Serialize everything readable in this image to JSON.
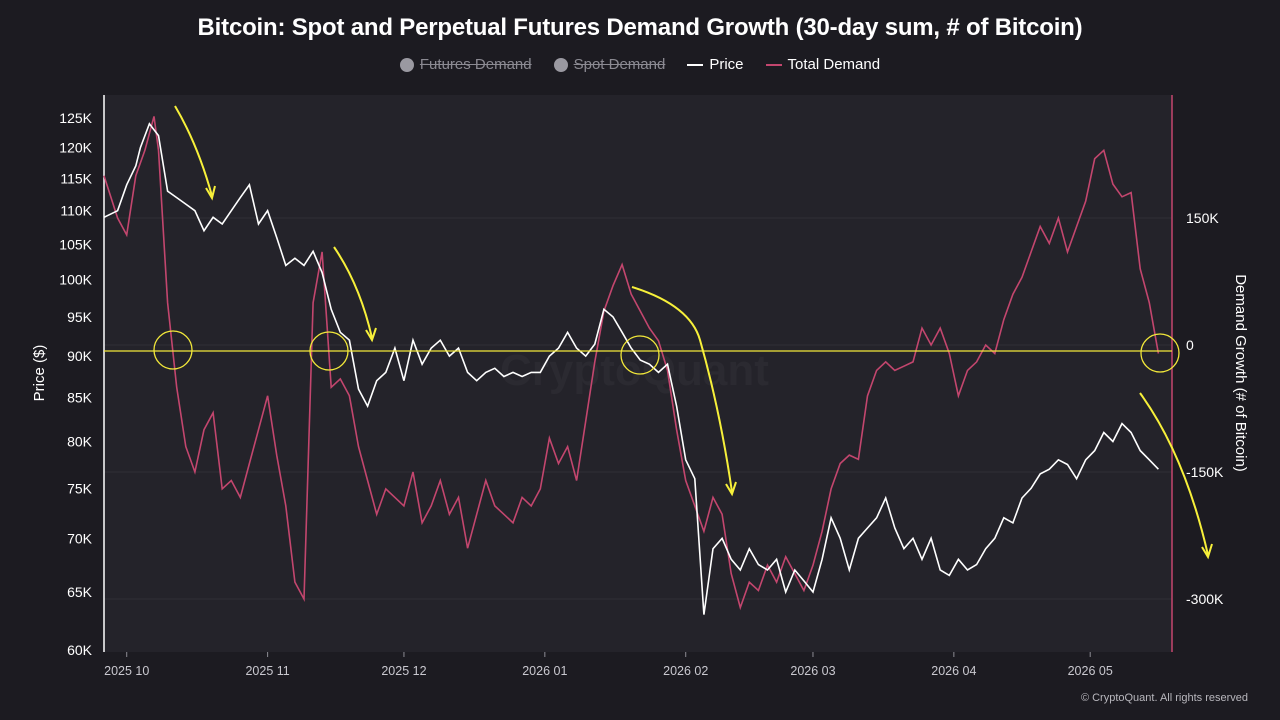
{
  "chart_data": {
    "type": "line",
    "title": "Bitcoin: Spot and Perpetual Futures Demand Growth (30-day sum, # of Bitcoin)",
    "legend": [
      {
        "name": "Futures Demand",
        "hidden": true,
        "color": "#9a99a1",
        "marker": "dot"
      },
      {
        "name": "Spot Demand",
        "hidden": true,
        "color": "#9a99a1",
        "marker": "dot"
      },
      {
        "name": "Price",
        "hidden": false,
        "color": "#ffffff",
        "marker": "line"
      },
      {
        "name": "Total Demand",
        "hidden": false,
        "color": "#c3466e",
        "marker": "line"
      }
    ],
    "legend_position": "top-center",
    "ylabel_left": "Price ($)",
    "ylabel_right": "Demand Growth (# of Bitcoin)",
    "y_left_scale": "log",
    "y_left_range": [
      60000,
      128000
    ],
    "y_left_ticks": [
      {
        "value": 125000,
        "label": "125K"
      },
      {
        "value": 120000,
        "label": "120K"
      },
      {
        "value": 115000,
        "label": "115K"
      },
      {
        "value": 110000,
        "label": "110K"
      },
      {
        "value": 105000,
        "label": "105K"
      },
      {
        "value": 100000,
        "label": "100K"
      },
      {
        "value": 95000,
        "label": "95K"
      },
      {
        "value": 90000,
        "label": "90K"
      },
      {
        "value": 85000,
        "label": "85K"
      },
      {
        "value": 80000,
        "label": "80K"
      },
      {
        "value": 75000,
        "label": "75K"
      },
      {
        "value": 70000,
        "label": "70K"
      },
      {
        "value": 65000,
        "label": "65K"
      },
      {
        "value": 60000,
        "label": "60K"
      }
    ],
    "y_right_range": [
      -350000,
      300000
    ],
    "y_right_ticks": [
      {
        "value": 150000,
        "label": "150K"
      },
      {
        "value": 0,
        "label": "0"
      },
      {
        "value": -150000,
        "label": "-150K"
      },
      {
        "value": -300000,
        "label": "-300K"
      }
    ],
    "x_ticks": [
      "2025 10",
      "2025 11",
      "2025 12",
      "2026 01",
      "2026 02",
      "2026 03",
      "2026 04",
      "2026 05"
    ],
    "x_range": [
      "2025-09-26",
      "2026-05-19"
    ],
    "series": [
      {
        "name": "Price",
        "axis": "left",
        "color": "#ffffff",
        "points": [
          [
            "2025-09-26",
            109000
          ],
          [
            "2025-09-29",
            110000
          ],
          [
            "2025-10-01",
            114000
          ],
          [
            "2025-10-03",
            117000
          ],
          [
            "2025-10-04",
            120000
          ],
          [
            "2025-10-06",
            124000
          ],
          [
            "2025-10-08",
            122000
          ],
          [
            "2025-10-10",
            113000
          ],
          [
            "2025-10-12",
            112000
          ],
          [
            "2025-10-14",
            111000
          ],
          [
            "2025-10-16",
            110000
          ],
          [
            "2025-10-18",
            107000
          ],
          [
            "2025-10-20",
            109000
          ],
          [
            "2025-10-22",
            108000
          ],
          [
            "2025-10-24",
            110000
          ],
          [
            "2025-10-26",
            112000
          ],
          [
            "2025-10-28",
            114000
          ],
          [
            "2025-10-30",
            108000
          ],
          [
            "2025-11-01",
            110000
          ],
          [
            "2025-11-03",
            106000
          ],
          [
            "2025-11-05",
            102000
          ],
          [
            "2025-11-07",
            103000
          ],
          [
            "2025-11-09",
            102000
          ],
          [
            "2025-11-11",
            104000
          ],
          [
            "2025-11-13",
            101000
          ],
          [
            "2025-11-15",
            96000
          ],
          [
            "2025-11-17",
            93000
          ],
          [
            "2025-11-19",
            92000
          ],
          [
            "2025-11-21",
            86000
          ],
          [
            "2025-11-23",
            84000
          ],
          [
            "2025-11-25",
            87000
          ],
          [
            "2025-11-27",
            88000
          ],
          [
            "2025-11-29",
            91000
          ],
          [
            "2025-12-01",
            87000
          ],
          [
            "2025-12-03",
            92000
          ],
          [
            "2025-12-05",
            89000
          ],
          [
            "2025-12-07",
            91000
          ],
          [
            "2025-12-09",
            92000
          ],
          [
            "2025-12-11",
            90000
          ],
          [
            "2025-12-13",
            91000
          ],
          [
            "2025-12-15",
            88000
          ],
          [
            "2025-12-17",
            87000
          ],
          [
            "2025-12-19",
            88000
          ],
          [
            "2025-12-21",
            88500
          ],
          [
            "2025-12-23",
            87500
          ],
          [
            "2025-12-25",
            88000
          ],
          [
            "2025-12-27",
            87500
          ],
          [
            "2025-12-29",
            88000
          ],
          [
            "2025-12-31",
            88000
          ],
          [
            "2026-01-02",
            90000
          ],
          [
            "2026-01-04",
            91000
          ],
          [
            "2026-01-06",
            93000
          ],
          [
            "2026-01-08",
            91000
          ],
          [
            "2026-01-10",
            90000
          ],
          [
            "2026-01-12",
            91500
          ],
          [
            "2026-01-14",
            96000
          ],
          [
            "2026-01-16",
            95000
          ],
          [
            "2026-01-18",
            93000
          ],
          [
            "2026-01-20",
            91000
          ],
          [
            "2026-01-22",
            89500
          ],
          [
            "2026-01-24",
            89000
          ],
          [
            "2026-01-26",
            88000
          ],
          [
            "2026-01-28",
            89000
          ],
          [
            "2026-01-30",
            84000
          ],
          [
            "2026-02-01",
            78000
          ],
          [
            "2026-02-03",
            76000
          ],
          [
            "2026-02-05",
            63000
          ],
          [
            "2026-02-07",
            69000
          ],
          [
            "2026-02-09",
            70000
          ],
          [
            "2026-02-11",
            68000
          ],
          [
            "2026-02-13",
            67000
          ],
          [
            "2026-02-15",
            69000
          ],
          [
            "2026-02-17",
            67500
          ],
          [
            "2026-02-19",
            67000
          ],
          [
            "2026-02-21",
            68000
          ],
          [
            "2026-02-23",
            65000
          ],
          [
            "2026-02-25",
            67000
          ],
          [
            "2026-02-27",
            66000
          ],
          [
            "2026-03-01",
            65000
          ],
          [
            "2026-03-03",
            68000
          ],
          [
            "2026-03-05",
            72000
          ],
          [
            "2026-03-07",
            70000
          ],
          [
            "2026-03-09",
            67000
          ],
          [
            "2026-03-11",
            70000
          ],
          [
            "2026-03-13",
            71000
          ],
          [
            "2026-03-15",
            72000
          ],
          [
            "2026-03-17",
            74000
          ],
          [
            "2026-03-19",
            71000
          ],
          [
            "2026-03-21",
            69000
          ],
          [
            "2026-03-23",
            70000
          ],
          [
            "2026-03-25",
            68000
          ],
          [
            "2026-03-27",
            70000
          ],
          [
            "2026-03-29",
            67000
          ],
          [
            "2026-03-31",
            66500
          ],
          [
            "2026-04-02",
            68000
          ],
          [
            "2026-04-04",
            67000
          ],
          [
            "2026-04-06",
            67500
          ],
          [
            "2026-04-08",
            69000
          ],
          [
            "2026-04-10",
            70000
          ],
          [
            "2026-04-12",
            72000
          ],
          [
            "2026-04-14",
            71500
          ],
          [
            "2026-04-16",
            74000
          ],
          [
            "2026-04-18",
            75000
          ],
          [
            "2026-04-20",
            76500
          ],
          [
            "2026-04-22",
            77000
          ],
          [
            "2026-04-24",
            78000
          ],
          [
            "2026-04-26",
            77500
          ],
          [
            "2026-04-28",
            76000
          ],
          [
            "2026-04-30",
            78000
          ],
          [
            "2026-05-02",
            79000
          ],
          [
            "2026-05-04",
            81000
          ],
          [
            "2026-05-06",
            80000
          ],
          [
            "2026-05-08",
            82000
          ],
          [
            "2026-05-10",
            81000
          ],
          [
            "2026-05-12",
            79000
          ],
          [
            "2026-05-14",
            78000
          ],
          [
            "2026-05-16",
            77000
          ]
        ]
      },
      {
        "name": "Total Demand",
        "axis": "right",
        "color": "#c3466e",
        "points": [
          [
            "2025-09-26",
            200000
          ],
          [
            "2025-09-29",
            150000
          ],
          [
            "2025-10-01",
            130000
          ],
          [
            "2025-10-03",
            200000
          ],
          [
            "2025-10-05",
            230000
          ],
          [
            "2025-10-07",
            270000
          ],
          [
            "2025-10-08",
            230000
          ],
          [
            "2025-10-10",
            50000
          ],
          [
            "2025-10-12",
            -50000
          ],
          [
            "2025-10-14",
            -120000
          ],
          [
            "2025-10-16",
            -150000
          ],
          [
            "2025-10-18",
            -100000
          ],
          [
            "2025-10-20",
            -80000
          ],
          [
            "2025-10-22",
            -170000
          ],
          [
            "2025-10-24",
            -160000
          ],
          [
            "2025-10-26",
            -180000
          ],
          [
            "2025-10-28",
            -140000
          ],
          [
            "2025-10-30",
            -100000
          ],
          [
            "2025-11-01",
            -60000
          ],
          [
            "2025-11-03",
            -130000
          ],
          [
            "2025-11-05",
            -190000
          ],
          [
            "2025-11-07",
            -280000
          ],
          [
            "2025-11-09",
            -300000
          ],
          [
            "2025-11-11",
            50000
          ],
          [
            "2025-11-13",
            110000
          ],
          [
            "2025-11-15",
            -50000
          ],
          [
            "2025-11-17",
            -40000
          ],
          [
            "2025-11-19",
            -60000
          ],
          [
            "2025-11-21",
            -120000
          ],
          [
            "2025-11-23",
            -160000
          ],
          [
            "2025-11-25",
            -200000
          ],
          [
            "2025-11-27",
            -170000
          ],
          [
            "2025-11-29",
            -180000
          ],
          [
            "2025-12-01",
            -190000
          ],
          [
            "2025-12-03",
            -150000
          ],
          [
            "2025-12-05",
            -210000
          ],
          [
            "2025-12-07",
            -190000
          ],
          [
            "2025-12-09",
            -160000
          ],
          [
            "2025-12-11",
            -200000
          ],
          [
            "2025-12-13",
            -180000
          ],
          [
            "2025-12-15",
            -240000
          ],
          [
            "2025-12-17",
            -200000
          ],
          [
            "2025-12-19",
            -160000
          ],
          [
            "2025-12-21",
            -190000
          ],
          [
            "2025-12-23",
            -200000
          ],
          [
            "2025-12-25",
            -210000
          ],
          [
            "2025-12-27",
            -180000
          ],
          [
            "2025-12-29",
            -190000
          ],
          [
            "2025-12-31",
            -170000
          ],
          [
            "2026-01-02",
            -110000
          ],
          [
            "2026-01-04",
            -140000
          ],
          [
            "2026-01-06",
            -120000
          ],
          [
            "2026-01-08",
            -160000
          ],
          [
            "2026-01-10",
            -90000
          ],
          [
            "2026-01-12",
            -20000
          ],
          [
            "2026-01-14",
            40000
          ],
          [
            "2026-01-16",
            70000
          ],
          [
            "2026-01-18",
            95000
          ],
          [
            "2026-01-20",
            60000
          ],
          [
            "2026-01-22",
            40000
          ],
          [
            "2026-01-24",
            20000
          ],
          [
            "2026-01-26",
            5000
          ],
          [
            "2026-01-28",
            -30000
          ],
          [
            "2026-01-30",
            -100000
          ],
          [
            "2026-02-01",
            -160000
          ],
          [
            "2026-02-03",
            -190000
          ],
          [
            "2026-02-05",
            -220000
          ],
          [
            "2026-02-07",
            -180000
          ],
          [
            "2026-02-09",
            -200000
          ],
          [
            "2026-02-11",
            -270000
          ],
          [
            "2026-02-13",
            -310000
          ],
          [
            "2026-02-15",
            -280000
          ],
          [
            "2026-02-17",
            -290000
          ],
          [
            "2026-02-19",
            -260000
          ],
          [
            "2026-02-21",
            -280000
          ],
          [
            "2026-02-23",
            -250000
          ],
          [
            "2026-02-25",
            -270000
          ],
          [
            "2026-02-27",
            -290000
          ],
          [
            "2026-03-01",
            -260000
          ],
          [
            "2026-03-03",
            -220000
          ],
          [
            "2026-03-05",
            -170000
          ],
          [
            "2026-03-07",
            -140000
          ],
          [
            "2026-03-09",
            -130000
          ],
          [
            "2026-03-11",
            -135000
          ],
          [
            "2026-03-13",
            -60000
          ],
          [
            "2026-03-15",
            -30000
          ],
          [
            "2026-03-17",
            -20000
          ],
          [
            "2026-03-19",
            -30000
          ],
          [
            "2026-03-21",
            -25000
          ],
          [
            "2026-03-23",
            -20000
          ],
          [
            "2026-03-25",
            20000
          ],
          [
            "2026-03-27",
            0
          ],
          [
            "2026-03-29",
            20000
          ],
          [
            "2026-03-31",
            -10000
          ],
          [
            "2026-04-02",
            -60000
          ],
          [
            "2026-04-04",
            -30000
          ],
          [
            "2026-04-06",
            -20000
          ],
          [
            "2026-04-08",
            0
          ],
          [
            "2026-04-10",
            -10000
          ],
          [
            "2026-04-12",
            30000
          ],
          [
            "2026-04-14",
            60000
          ],
          [
            "2026-04-16",
            80000
          ],
          [
            "2026-04-18",
            110000
          ],
          [
            "2026-04-20",
            140000
          ],
          [
            "2026-04-22",
            120000
          ],
          [
            "2026-04-24",
            150000
          ],
          [
            "2026-04-26",
            110000
          ],
          [
            "2026-04-28",
            140000
          ],
          [
            "2026-04-30",
            170000
          ],
          [
            "2026-05-02",
            220000
          ],
          [
            "2026-05-04",
            230000
          ],
          [
            "2026-05-06",
            190000
          ],
          [
            "2026-05-08",
            175000
          ],
          [
            "2026-05-10",
            180000
          ],
          [
            "2026-05-12",
            90000
          ],
          [
            "2026-05-14",
            50000
          ],
          [
            "2026-05-16",
            -10000
          ]
        ]
      }
    ]
  },
  "footer": {
    "copyright": "© CryptoQuant. All rights reserved"
  }
}
